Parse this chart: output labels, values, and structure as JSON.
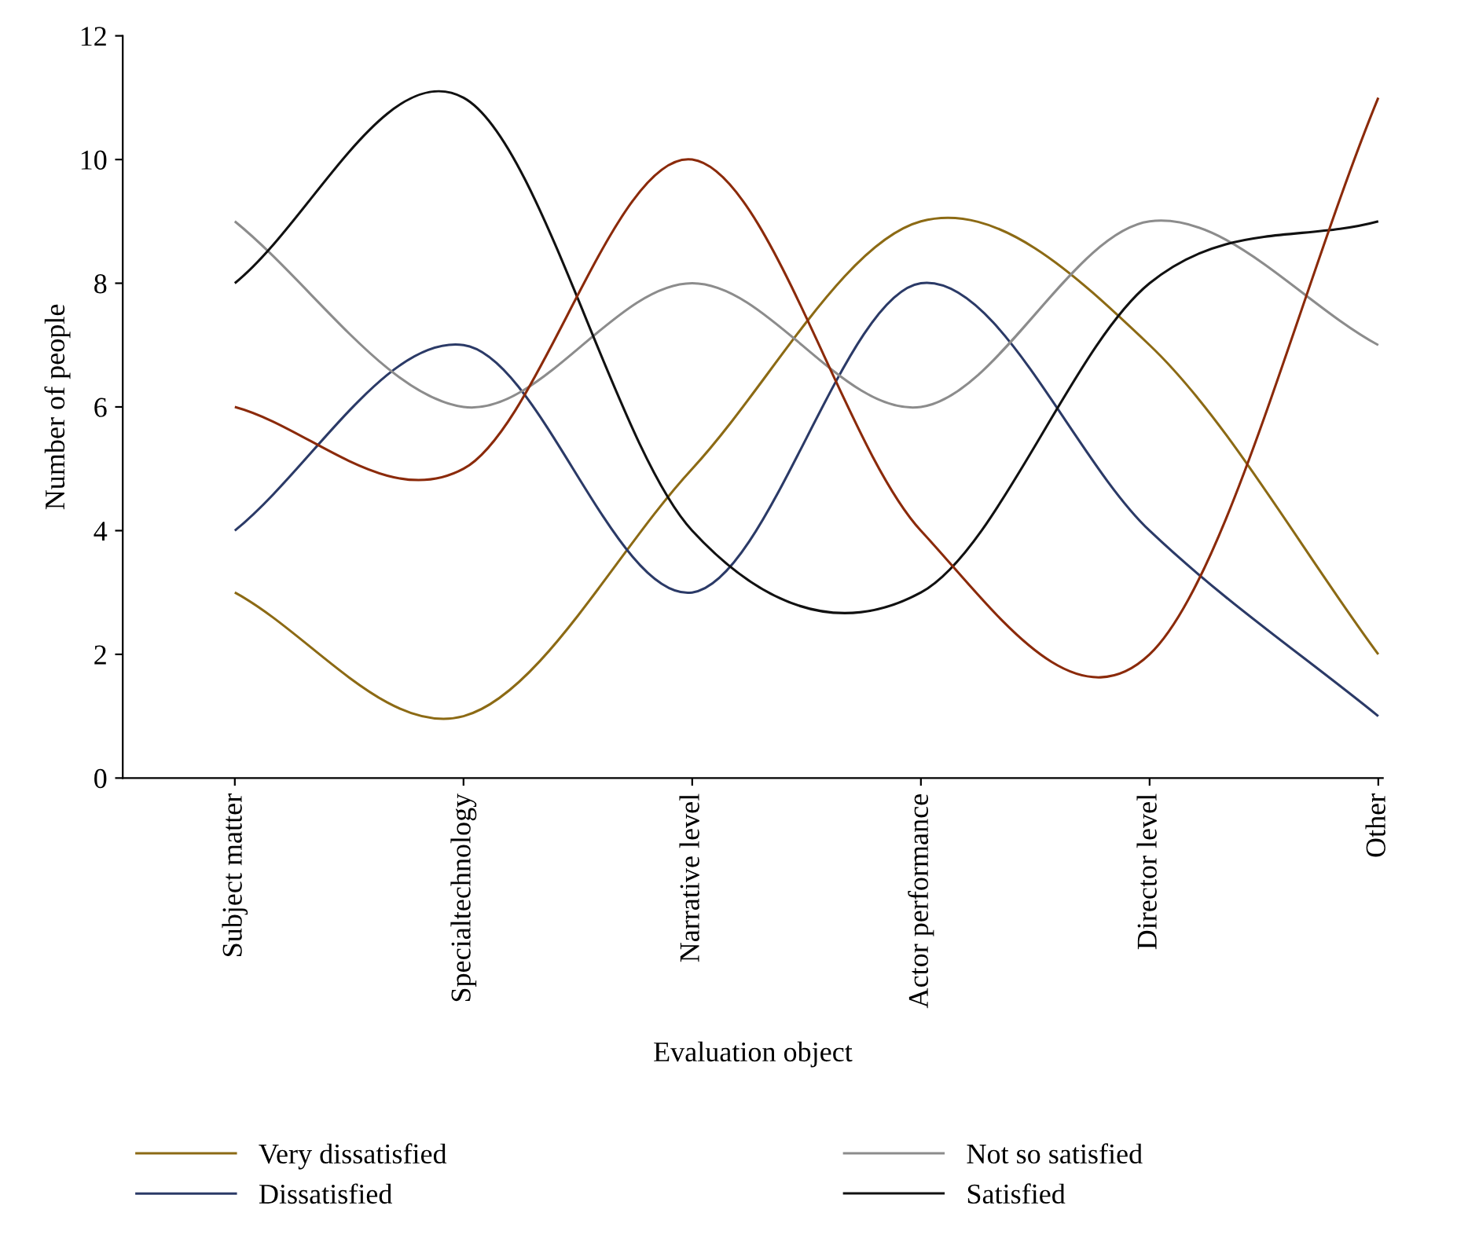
{
  "chart_data": {
    "type": "line",
    "xlabel": "Evaluation object",
    "ylabel": "Number of people",
    "categories": [
      "Subject matter",
      "Specialtechnology",
      "Narrative level",
      "Actor performance",
      "Director level",
      "Other"
    ],
    "ylim": [
      0,
      12
    ],
    "yticks": [
      0,
      2,
      4,
      6,
      8,
      10,
      12
    ],
    "grid": false,
    "legend": "bottom",
    "marker": "none",
    "line_style": "solid",
    "series": [
      {
        "name": "Very dissatisfied",
        "color": "#8c6a14",
        "values": [
          3,
          1,
          5,
          9,
          7,
          2
        ]
      },
      {
        "name": "Dissatisfied",
        "color": "#2b3a67",
        "values": [
          4,
          7,
          3,
          8,
          4,
          1
        ]
      },
      {
        "name": "Not so satisfied",
        "color": "#8c8c8c",
        "values": [
          9,
          6,
          8,
          6,
          9,
          7
        ]
      },
      {
        "name": "Satisfied",
        "color": "#111111",
        "values": [
          8,
          11,
          4,
          3,
          8,
          9
        ]
      },
      {
        "color": "#8b2a0a",
        "values": [
          6,
          5,
          10,
          4,
          2,
          11
        ]
      }
    ]
  }
}
